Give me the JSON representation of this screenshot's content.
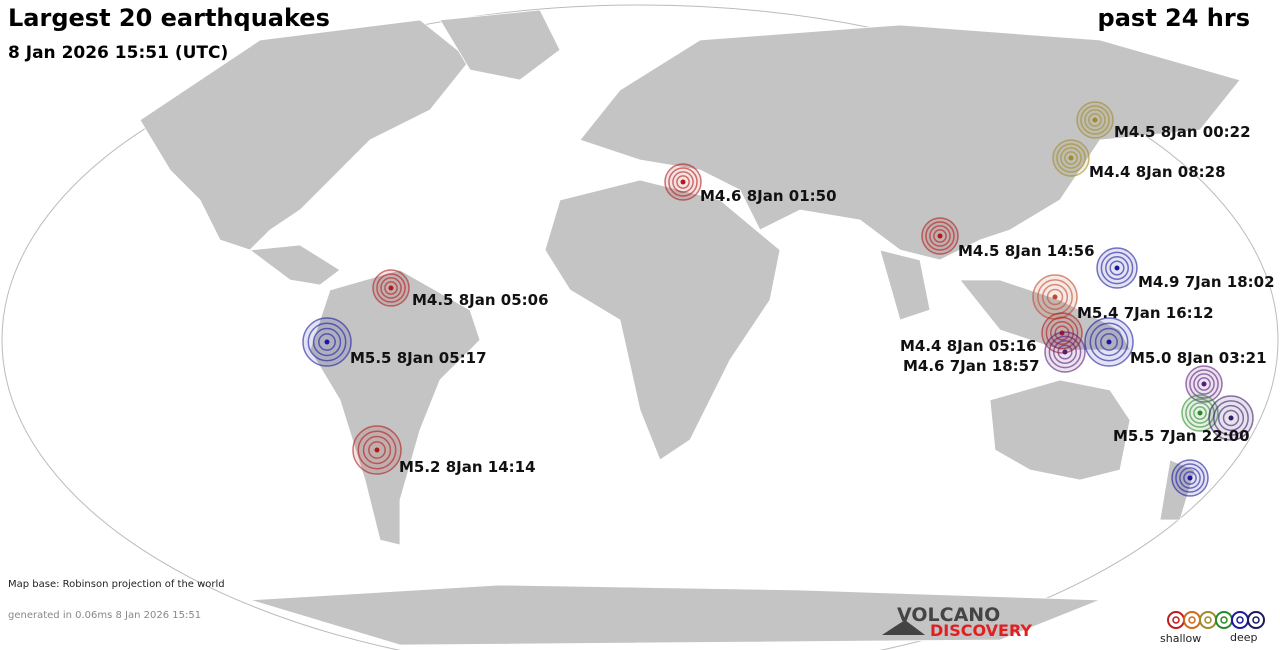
{
  "header": {
    "title": "Largest 20 earthquakes",
    "period": "past 24 hrs",
    "timestamp": "8 Jan 2026 15:51 (UTC)"
  },
  "quakes": [
    {
      "label": "M4.5  8Jan 00:22",
      "color": "#a08a2a"
    },
    {
      "label": "M4.4  8Jan 08:28",
      "color": "#a08a2a"
    },
    {
      "label": "M4.6  8Jan 01:50",
      "color": "#b01a1a"
    },
    {
      "label": "M4.5  8Jan 14:56",
      "color": "#b01a1a"
    },
    {
      "label": "M4.9  7Jan 18:02",
      "color": "#1a1aa0"
    },
    {
      "label": "M4.5  8Jan 05:06",
      "color": "#b01a1a"
    },
    {
      "label": "M5.4  7Jan 16:12",
      "color": "#c04a2a"
    },
    {
      "label": "M5.5  8Jan 05:17",
      "color": "#1a1aa0"
    },
    {
      "label": "M4.4  8Jan 05:16",
      "color": "#b01a1a"
    },
    {
      "label": "M4.6  7Jan 18:57",
      "color": "#5a1a7a"
    },
    {
      "label": "M5.0  8Jan 03:21",
      "color": "#1a1aa0"
    },
    {
      "label": "M5.5  7Jan 22:00",
      "color": "#3a1a6a"
    },
    {
      "label": "M5.2  8Jan 14:14",
      "color": "#b01a1a"
    }
  ],
  "footer": {
    "map_base": "Map base: Robinson projection of the world",
    "generated": "generated in 0.06ms  8 Jan 2026 15:51",
    "logo_top": "VOLCANO",
    "logo_bottom": "DISCOVERY",
    "legend_shallow": "shallow",
    "legend_deep": "deep"
  }
}
